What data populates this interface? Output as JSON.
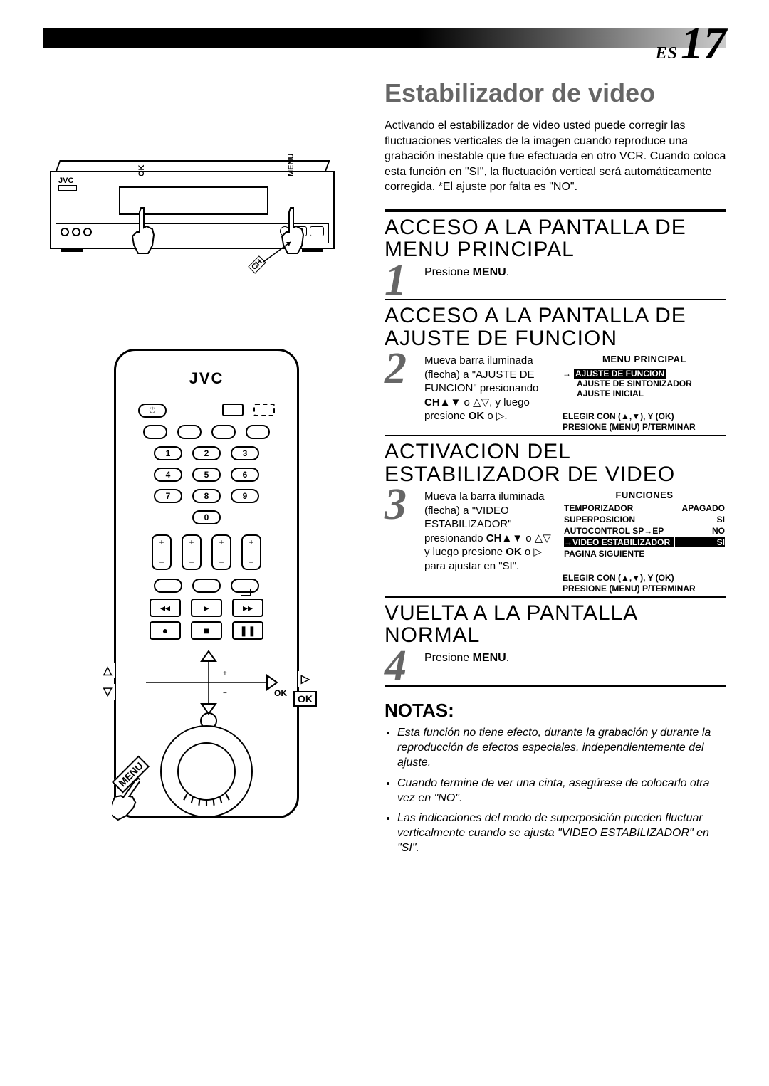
{
  "page": {
    "lang_code": "ES",
    "number": "17"
  },
  "colors": {
    "accent_gray": "#666666",
    "black": "#000000"
  },
  "vcr": {
    "brand": "JVC",
    "labels": {
      "ok": "OK",
      "menu": "MENU",
      "ch": "CH"
    }
  },
  "remote": {
    "brand": "JVC",
    "num_row1": [
      "1",
      "2",
      "3"
    ],
    "num_row2": [
      "4",
      "5",
      "6"
    ],
    "num_row3": [
      "7",
      "8",
      "9"
    ],
    "num_row4": [
      "0"
    ],
    "dpad": {
      "up": "△",
      "down": "▽",
      "right": "▷",
      "ok": "OK"
    },
    "transport": {
      "rew": "◂◂",
      "play": "▸",
      "ff": "▸▸",
      "rec": "●",
      "stop": "■",
      "pause": "❚❚"
    },
    "edge_labels": {
      "menu": "MENU",
      "ok": "OK",
      "up": "△",
      "down": "▽",
      "right": "▷"
    }
  },
  "main": {
    "title": "Estabilizador de video",
    "intro": "Activando el estabilizador de video usted puede corregir las fluctuaciones verticales de la imagen cuando reproduce una grabación inestable que fue efectuada en otro VCR. Cuando coloca esta función en \"SI\", la fluctuación vertical será automáticamente corregida. *El ajuste por falta es \"NO\"."
  },
  "steps": [
    {
      "num": "1",
      "title": "ACCESO A LA PANTALLA DE MENU PRINCIPAL",
      "body_html": "Presione <b>MENU</b>."
    },
    {
      "num": "2",
      "title": "ACCESO A LA PANTALLA DE AJUSTE DE FUNCION",
      "body_html": "Mueva barra iluminada (flecha) a \"AJUSTE DE FUNCION\" presionando <b>CH▲▼</b> o △▽, y luego presione <b>OK</b> o ▷.",
      "menu": {
        "heading": "MENU PRINCIPAL",
        "items": [
          {
            "label": "AJUSTE DE FUNCION",
            "highlighted": true,
            "arrow": true
          },
          {
            "label": "AJUSTE DE SINTONIZADOR",
            "highlighted": false
          },
          {
            "label": "AJUSTE INICIAL",
            "highlighted": false
          }
        ],
        "footer1": "ELEGIR CON (▲,▼), Y (OK)",
        "footer2": "PRESIONE (MENU) P/TERMINAR"
      }
    },
    {
      "num": "3",
      "title": "ACTIVACION DEL ESTABILIZADOR DE VIDEO",
      "body_html": "Mueva la barra iluminada (flecha) a \"VIDEO ESTABILIZADOR\" presionando <b>CH▲▼</b> o △▽ y luego presione <b>OK</b> o ▷ para ajustar en \"SI\".",
      "func": {
        "heading": "FUNCIONES",
        "rows": [
          {
            "label": "TEMPORIZADOR",
            "value": "APAGADO",
            "highlighted": false
          },
          {
            "label": "SUPERPOSICION",
            "value": "SI",
            "highlighted": false
          },
          {
            "label": "AUTOCONTROL SP→EP",
            "value": "NO",
            "highlighted": false
          },
          {
            "label": "VIDEO ESTABILIZADOR",
            "value": "SI",
            "highlighted": true,
            "arrow": true
          },
          {
            "label": "PAGINA SIGUIENTE",
            "value": "",
            "highlighted": false
          }
        ],
        "footer1": "ELEGIR CON (▲,▼), Y (OK)",
        "footer2": "PRESIONE (MENU) P/TERMINAR"
      }
    },
    {
      "num": "4",
      "title": "VUELTA A LA PANTALLA NORMAL",
      "body_html": "Presione <b>MENU</b>."
    }
  ],
  "notas": {
    "title": "NOTAS:",
    "items": [
      "Esta función no tiene efecto, durante la grabación y durante la reproducción de efectos especiales, independientemente del ajuste.",
      "Cuando termine de ver una cinta, asegúrese de colocarlo otra vez en \"NO\".",
      "Las indicaciones del modo de superposición pueden fluctuar verticalmente cuando se ajusta \"VIDEO ESTABILIZADOR\" en \"SI\"."
    ]
  }
}
